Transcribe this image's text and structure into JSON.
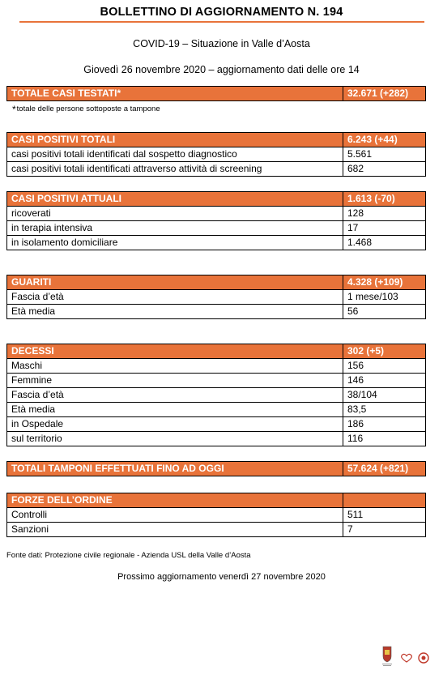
{
  "header": {
    "title": "BOLLETTINO DI AGGIORNAMENTO N. 194",
    "subtitle": "COVID-19 – Situazione in Valle d’Aosta",
    "date_line": "Giovedì 26 novembre 2020 – aggiornamento dati delle ore 14"
  },
  "accent_color": "#e8733a",
  "totale_casi_testati": {
    "label": "TOTALE CASI TESTATI",
    "marker": "*",
    "value": "32.671 (+282)"
  },
  "footnote": {
    "marker": "*",
    "text": "totale delle persone sottoposte a tampone"
  },
  "casi_positivi_totali": {
    "label": "CASI POSITIVI TOTALI",
    "value": "6.243 (+44)",
    "rows": [
      {
        "label": "casi positivi totali identificati dal sospetto diagnostico",
        "value": "5.561"
      },
      {
        "label": "casi positivi totali identificati attraverso attività di screening",
        "value": "682"
      }
    ]
  },
  "casi_positivi_attuali": {
    "label": "CASI POSITIVI ATTUALI",
    "value": "1.613 (-70)",
    "rows": [
      {
        "label": "ricoverati",
        "value": "128"
      },
      {
        "label": "in terapia intensiva",
        "value": "17"
      },
      {
        "label": "in isolamento domiciliare",
        "value": "1.468"
      }
    ]
  },
  "guariti": {
    "label": "GUARITI",
    "value": "4.328 (+109)",
    "rows": [
      {
        "label": "Fascia d’età",
        "value": "1 mese/103"
      },
      {
        "label": "Età media",
        "value": "56"
      }
    ]
  },
  "decessi": {
    "label": "DECESSI",
    "value": "302 (+5)",
    "rows": [
      {
        "label": "Maschi",
        "value": "156"
      },
      {
        "label": "Femmine",
        "value": "146"
      },
      {
        "label": "Fascia d’età",
        "value": "38/104"
      },
      {
        "label": "Età media",
        "value": "83,5"
      },
      {
        "label": "in Ospedale",
        "value": "186"
      },
      {
        "label": "sul territorio",
        "value": "116"
      }
    ]
  },
  "totali_tamponi": {
    "label": "TOTALI TAMPONI EFFETTUATI FINO AD OGGI",
    "value": "57.624 (+821)"
  },
  "forze_ordine": {
    "label": "FORZE DELL’ORDINE",
    "value": "",
    "rows": [
      {
        "label": "Controlli",
        "value": "511"
      },
      {
        "label": "Sanzioni",
        "value": "7"
      }
    ]
  },
  "source": "Fonte dati: Protezione civile regionale - Azienda USL della Valle d’Aosta",
  "next_update": "Prossimo aggiornamento venerdì 27 novembre 2020",
  "icons": [
    "regional-crest-icon",
    "heart-logo-icon",
    "round-emblem-icon"
  ]
}
